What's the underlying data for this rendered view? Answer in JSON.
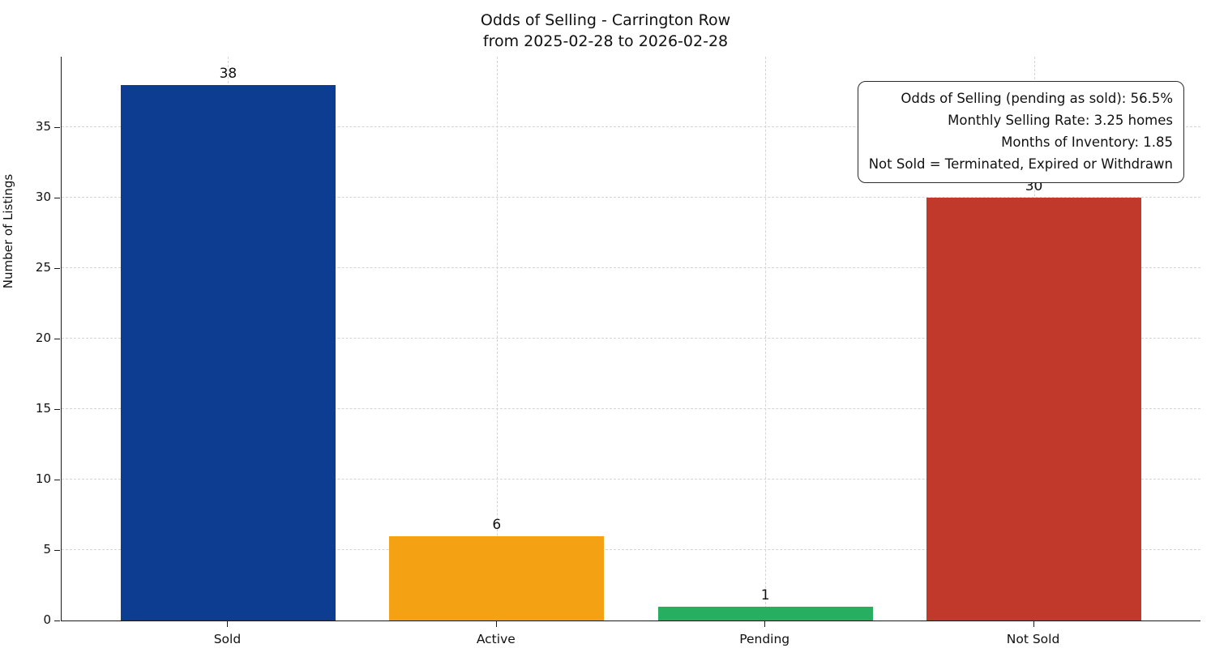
{
  "chart_data": {
    "type": "bar",
    "title": "Odds of Selling - Carrington Row",
    "subtitle": "from 2025-02-28 to 2026-02-28",
    "ylabel": "Number of Listings",
    "xlabel": "",
    "categories": [
      "Sold",
      "Active",
      "Pending",
      "Not Sold"
    ],
    "values": [
      38,
      6,
      1,
      30
    ],
    "bar_colors": [
      "#0d3d91",
      "#f4a113",
      "#27ae60",
      "#c0392b"
    ],
    "value_labels": [
      "38",
      "6",
      "1",
      "30"
    ],
    "yticks": [
      0,
      5,
      10,
      15,
      20,
      25,
      30,
      35
    ],
    "ylim": [
      0,
      40
    ],
    "grid": true,
    "legend_position": "none",
    "annotation": {
      "lines": [
        "Odds of Selling (pending as sold): 56.5%",
        "Monthly Selling Rate: 3.25 homes",
        "Months of Inventory: 1.85",
        "Not Sold = Terminated, Expired or Withdrawn"
      ]
    }
  }
}
